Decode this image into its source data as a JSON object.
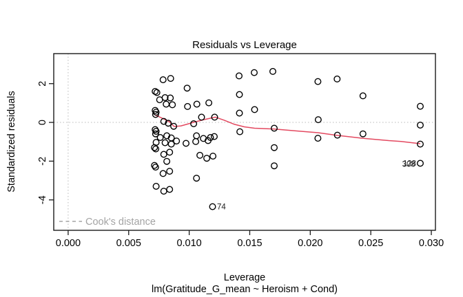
{
  "chart_data": {
    "type": "scatter",
    "title": "Residuals vs Leverage",
    "xlabel": "Leverage",
    "sublabel": "lm(Gratitude_G_mean ~ Heroism + Cond)",
    "ylabel": "Standardized residuals",
    "xlim": [
      -0.00119,
      0.03034
    ],
    "ylim": [
      -5.57,
      3.55
    ],
    "x_ticks": {
      "values": [
        0,
        0.005,
        0.01,
        0.015,
        0.02,
        0.025,
        0.03
      ],
      "labels": [
        "0.000",
        "0.005",
        "0.010",
        "0.015",
        "0.020",
        "0.025",
        "0.030"
      ]
    },
    "y_ticks": {
      "values": [
        2,
        0,
        -2,
        -4
      ],
      "labels": [
        "2",
        "0",
        "-2",
        "-4"
      ]
    },
    "reference_lines": {
      "horizontal_at": 0,
      "vertical_at": 0,
      "style": "dotted",
      "color": "#b8b8b8"
    },
    "legend": {
      "label": "Cook's distance",
      "line_style": "dashed",
      "color": "#a3a3a3",
      "position": "bottom-left"
    },
    "colors": {
      "points": "#000000",
      "smooth_line": "#e3485f",
      "box": "#1a1a1a",
      "label_text": "#1c1c1c"
    },
    "points": [
      [
        0.00784,
        2.2
      ],
      [
        0.00847,
        2.27
      ],
      [
        0.00719,
        1.6
      ],
      [
        0.00733,
        1.54
      ],
      [
        0.00756,
        1.17
      ],
      [
        0.00801,
        1.28
      ],
      [
        0.00844,
        1.26
      ],
      [
        0.0081,
        0.94
      ],
      [
        0.00861,
        0.91
      ],
      [
        0.00719,
        0.62
      ],
      [
        0.00727,
        0.53
      ],
      [
        0.00722,
        0.41
      ],
      [
        0.0079,
        0.05
      ],
      [
        0.00827,
        -0.04
      ],
      [
        0.00872,
        -0.2
      ],
      [
        0.00719,
        -0.37
      ],
      [
        0.00727,
        -0.46
      ],
      [
        0.00722,
        -0.59
      ],
      [
        0.00761,
        -0.78
      ],
      [
        0.00815,
        -0.69
      ],
      [
        0.00852,
        -0.8
      ],
      [
        0.00895,
        -0.96
      ],
      [
        0.00727,
        -1.03
      ],
      [
        0.00801,
        -1.05
      ],
      [
        0.00852,
        -1.12
      ],
      [
        0.00713,
        -1.3
      ],
      [
        0.00724,
        -1.37
      ],
      [
        0.0079,
        -1.65
      ],
      [
        0.00838,
        -1.54
      ],
      [
        0.00815,
        -2.01
      ],
      [
        0.00713,
        -2.22
      ],
      [
        0.00722,
        -2.31
      ],
      [
        0.00784,
        -2.64
      ],
      [
        0.00838,
        -2.52
      ],
      [
        0.00727,
        -3.3
      ],
      [
        0.0079,
        -3.55
      ],
      [
        0.00838,
        -3.46
      ],
      [
        0.00983,
        1.77
      ],
      [
        0.00986,
        0.82
      ],
      [
        0.01063,
        0.94
      ],
      [
        0.01162,
        1.01
      ],
      [
        0.01037,
        -0.07
      ],
      [
        0.01102,
        0.27
      ],
      [
        0.0121,
        0.27
      ],
      [
        0.0106,
        -0.69
      ],
      [
        0.01117,
        -0.83
      ],
      [
        0.01176,
        -0.78
      ],
      [
        0.01207,
        -0.73
      ],
      [
        0.00974,
        -1.08
      ],
      [
        0.01054,
        -0.99
      ],
      [
        0.01156,
        -0.94
      ],
      [
        0.01088,
        -1.7
      ],
      [
        0.01145,
        -1.85
      ],
      [
        0.01196,
        -1.74
      ],
      [
        0.0106,
        -2.88
      ],
      [
        0.01412,
        2.4
      ],
      [
        0.01537,
        2.57
      ],
      [
        0.01691,
        2.63
      ],
      [
        0.01415,
        1.44
      ],
      [
        0.01415,
        0.48
      ],
      [
        0.0154,
        0.66
      ],
      [
        0.01418,
        -0.48
      ],
      [
        0.01702,
        -0.3
      ],
      [
        0.01702,
        -1.3
      ],
      [
        0.01702,
        -2.24
      ],
      [
        0.02063,
        2.11
      ],
      [
        0.02222,
        2.24
      ],
      [
        0.02435,
        1.37
      ],
      [
        0.02066,
        0.14
      ],
      [
        0.02063,
        -0.82
      ],
      [
        0.02224,
        -0.66
      ],
      [
        0.02435,
        -0.59
      ],
      [
        0.02909,
        0.83
      ],
      [
        0.02909,
        -0.14
      ],
      [
        0.02909,
        -1.12
      ]
    ],
    "labeled_points": [
      {
        "label": "74",
        "x": 0.01193,
        "y": -4.35,
        "side": "right"
      },
      {
        "label": "128",
        "x": 0.02909,
        "y": -2.11,
        "side": "left"
      },
      {
        "label": "308",
        "x": 0.02909,
        "y": -2.11,
        "side": "left",
        "dx": -1.2,
        "dy": 1
      }
    ],
    "smooth_line": [
      [
        0.00716,
        0.39
      ],
      [
        0.00773,
        0.23
      ],
      [
        0.00835,
        0.04
      ],
      [
        0.00875,
        -0.21
      ],
      [
        0.00932,
        -0.18
      ],
      [
        0.00983,
        -0.09
      ],
      [
        0.01045,
        0.02
      ],
      [
        0.01119,
        0.14
      ],
      [
        0.01216,
        0.27
      ],
      [
        0.0129,
        0.11
      ],
      [
        0.01369,
        -0.09
      ],
      [
        0.01455,
        -0.23
      ],
      [
        0.0154,
        -0.3
      ],
      [
        0.01699,
        -0.34
      ],
      [
        0.01881,
        -0.44
      ],
      [
        0.02063,
        -0.53
      ],
      [
        0.02222,
        -0.67
      ],
      [
        0.02432,
        -0.82
      ],
      [
        0.02648,
        -0.94
      ],
      [
        0.0275,
        -0.98
      ],
      [
        0.02909,
        -1.1
      ]
    ]
  }
}
